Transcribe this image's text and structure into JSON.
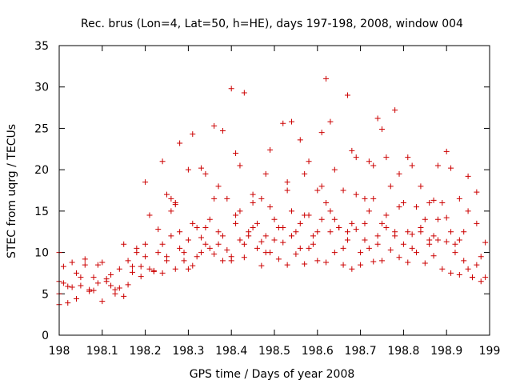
{
  "chart_data": {
    "type": "scatter",
    "title": "Rec. brus (Lon=4, Lat=50, h=HE), days 197-198, 2008, window 004",
    "xlabel": "GPS time / Days of year 2008",
    "ylabel": "STEC from uqrg / TECUs",
    "xlim": [
      198,
      199
    ],
    "ylim": [
      0,
      35
    ],
    "x_ticks": [
      "198",
      "198.1",
      "198.2",
      "198.3",
      "198.4",
      "198.5",
      "198.6",
      "198.7",
      "198.8",
      "198.9",
      "199"
    ],
    "y_ticks": [
      "0",
      "5",
      "10",
      "15",
      "20",
      "25",
      "30",
      "35"
    ],
    "grid": false,
    "legend": "none",
    "marker": "plus",
    "color": "#cc0000",
    "series": [
      {
        "x": [
          198.0,
          198.0,
          198.0,
          198.01,
          198.02,
          198.03,
          198.04,
          198.05,
          198.06,
          198.07,
          198.08,
          198.09,
          198.1,
          198.11,
          198.12,
          198.13,
          198.14,
          198.15,
          198.16,
          198.17,
          198.18,
          198.19,
          198.2,
          198.21,
          198.22,
          198.23,
          198.24,
          198.25,
          198.26,
          198.27,
          198.28,
          198.29,
          198.3,
          198.31,
          198.32,
          198.33,
          198.34,
          198.35,
          198.36,
          198.37,
          198.38,
          198.39,
          198.4,
          198.41,
          198.42,
          198.43,
          198.44,
          198.45,
          198.46,
          198.47,
          198.48,
          198.49,
          198.5,
          198.51,
          198.52,
          198.53,
          198.54,
          198.55,
          198.56,
          198.57,
          198.58,
          198.59,
          198.6,
          198.61,
          198.62,
          198.63,
          198.64,
          198.65,
          198.66,
          198.67,
          198.68,
          198.69,
          198.7,
          198.71,
          198.72,
          198.73,
          198.74,
          198.75,
          198.76,
          198.77,
          198.78,
          198.79,
          198.8,
          198.81,
          198.82,
          198.83,
          198.84,
          198.85,
          198.86,
          198.87,
          198.88,
          198.89,
          198.9,
          198.91,
          198.92,
          198.93,
          198.94,
          198.95,
          198.96,
          198.97,
          198.98,
          198.99,
          198.0,
          198.02,
          198.04,
          198.06,
          198.08,
          198.1,
          198.12,
          198.14,
          198.16,
          198.18,
          198.2,
          198.22,
          198.24,
          198.26,
          198.28,
          198.3,
          198.32,
          198.34,
          198.36,
          198.38,
          198.4,
          198.42,
          198.44,
          198.46,
          198.48,
          198.5,
          198.52,
          198.54,
          198.56,
          198.58,
          198.6,
          198.62,
          198.64,
          198.66,
          198.68,
          198.7,
          198.72,
          198.74,
          198.76,
          198.78,
          198.8,
          198.82,
          198.84,
          198.86,
          198.88,
          198.9,
          198.92,
          198.94,
          198.96,
          198.98,
          198.01,
          198.03,
          198.05,
          198.07,
          198.09,
          198.11,
          198.13,
          198.15,
          198.17,
          198.19,
          198.21,
          198.23,
          198.25,
          198.27,
          198.29,
          198.31,
          198.33,
          198.35,
          198.37,
          198.39,
          198.41,
          198.43,
          198.45,
          198.47,
          198.49,
          198.51,
          198.53,
          198.55,
          198.57,
          198.59,
          198.61,
          198.63,
          198.65,
          198.67,
          198.69,
          198.71,
          198.73,
          198.75,
          198.77,
          198.79,
          198.81,
          198.83,
          198.85,
          198.87,
          198.89,
          198.91,
          198.93,
          198.95,
          198.97,
          198.99,
          198.2,
          198.24,
          198.26,
          198.28,
          198.3,
          198.34,
          198.36,
          198.38,
          198.4,
          198.41,
          198.43,
          198.47,
          198.49,
          198.52,
          198.53,
          198.56,
          198.58,
          198.6,
          198.62,
          198.63,
          198.66,
          198.67,
          198.68,
          198.72,
          198.73,
          198.74,
          198.76,
          198.78,
          198.79,
          198.82,
          198.86,
          198.88,
          198.9,
          198.93,
          198.97,
          198.25,
          198.27,
          198.31,
          198.33,
          198.37,
          198.42,
          198.45,
          198.48,
          198.54,
          198.57,
          198.61,
          198.64,
          198.69,
          198.71,
          198.75,
          198.81,
          198.84,
          198.87,
          198.91,
          198.95
        ],
        "y": [
          3.7,
          6.5,
          10.0,
          8.3,
          3.9,
          5.8,
          7.5,
          6.0,
          8.5,
          5.5,
          7.0,
          6.3,
          8.8,
          6.5,
          6.0,
          5.0,
          8.0,
          4.7,
          9.0,
          7.6,
          10.5,
          8.3,
          11.0,
          8.0,
          7.8,
          10.0,
          7.5,
          9.5,
          12.0,
          8.0,
          10.5,
          9.0,
          11.5,
          8.4,
          9.5,
          10.0,
          13.0,
          10.5,
          9.8,
          12.5,
          9.0,
          10.3,
          9.0,
          13.5,
          11.5,
          9.4,
          12.0,
          13.0,
          10.5,
          8.4,
          12.0,
          10.0,
          14.0,
          9.2,
          11.2,
          8.5,
          12.0,
          9.8,
          13.5,
          8.6,
          10.5,
          11.0,
          9.0,
          14.0,
          8.8,
          12.5,
          10.0,
          13.0,
          8.5,
          11.5,
          8.0,
          12.8,
          8.5,
          13.5,
          10.5,
          8.9,
          12.0,
          9.0,
          13.0,
          10.3,
          12.5,
          9.4,
          11.0,
          8.8,
          12.2,
          10.0,
          12.5,
          8.7,
          11.0,
          9.6,
          11.5,
          8.0,
          11.3,
          7.5,
          10.0,
          7.3,
          9.0,
          8.0,
          7.0,
          8.5,
          6.5,
          7.0,
          5.0,
          5.9,
          4.4,
          9.2,
          5.4,
          4.1,
          7.3,
          5.7,
          6.1,
          10.0,
          9.5,
          7.7,
          11.0,
          15.0,
          12.5,
          8.0,
          13.0,
          11.0,
          16.5,
          12.0,
          9.5,
          15.0,
          12.5,
          13.5,
          10.0,
          11.5,
          13.0,
          15.0,
          10.5,
          14.5,
          12.5,
          16.0,
          14.0,
          10.5,
          13.5,
          10.0,
          15.0,
          11.0,
          14.5,
          12.0,
          16.0,
          10.5,
          13.0,
          11.5,
          14.0,
          14.2,
          11.0,
          12.5,
          7.0,
          9.5,
          6.3,
          8.8,
          7.0,
          5.3,
          8.5,
          6.8,
          5.5,
          11.0,
          8.3,
          7.1,
          14.5,
          12.8,
          9.0,
          16.0,
          10.0,
          13.5,
          11.8,
          14.0,
          11.0,
          16.5,
          14.5,
          11.0,
          17.0,
          11.3,
          15.5,
          13.0,
          17.5,
          12.5,
          14.5,
          12.0,
          18.0,
          15.0,
          13.0,
          12.5,
          17.0,
          11.5,
          16.5,
          13.5,
          18.0,
          15.5,
          12.5,
          15.5,
          14.0,
          12.0,
          16.0,
          12.5,
          11.5,
          15.0,
          13.5,
          11.2,
          18.5,
          21.0,
          16.5,
          23.2,
          20.0,
          19.5,
          25.3,
          24.7,
          29.8,
          22.0,
          29.3,
          16.5,
          22.4,
          25.6,
          18.5,
          23.6,
          21.0,
          17.5,
          31.0,
          25.8,
          17.5,
          29.0,
          22.3,
          21.0,
          20.5,
          26.2,
          21.5,
          27.2,
          19.5,
          20.5,
          16.0,
          20.5,
          22.2,
          16.5,
          17.3,
          17.0,
          15.8,
          24.3,
          20.2,
          18.0,
          20.5,
          16.0,
          19.5,
          25.8,
          19.5,
          24.5,
          20.0,
          21.5,
          16.5,
          24.9,
          21.5,
          18.0,
          16.3,
          20.2,
          19.2
        ]
      }
    ]
  }
}
